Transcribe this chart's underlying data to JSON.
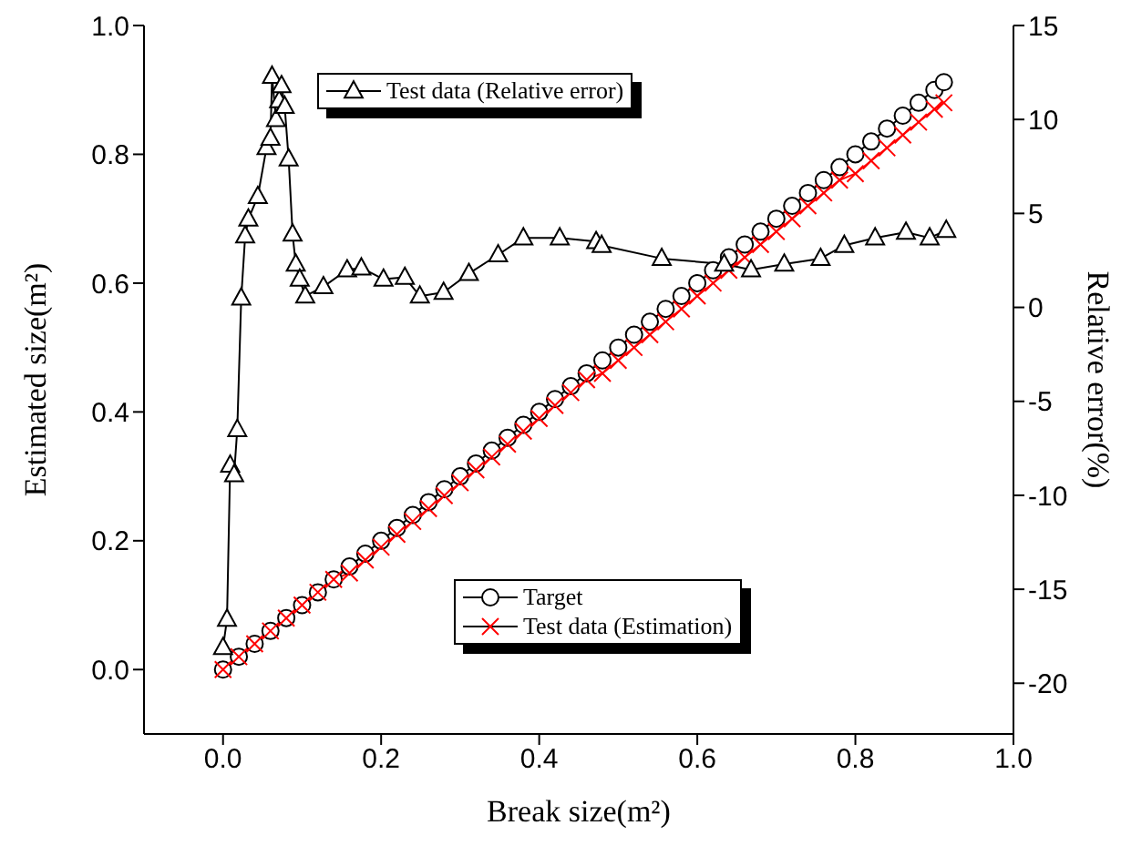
{
  "chart_data": {
    "type": "line",
    "xlabel": "Break size(m²)",
    "ylabel": "Estimated size(m²)",
    "y2label": "Relative error(%)",
    "xlim": [
      -0.1,
      1.0
    ],
    "xticks": [
      {
        "value": 0,
        "label": "0.0"
      },
      0.2,
      0.4,
      0.6,
      0.8,
      {
        "value": 1,
        "label": "1.0"
      }
    ],
    "ylim": [
      -0.1,
      1.0
    ],
    "yticks": [
      {
        "value": 0,
        "label": "0.0"
      },
      0.2,
      0.4,
      0.6,
      0.8,
      {
        "value": 1,
        "label": "1.0"
      }
    ],
    "y2lim": [
      -22.7,
      15
    ],
    "y2ticks": [
      -20,
      -15,
      -10,
      -5,
      0,
      5,
      10,
      15
    ],
    "legend": "top left",
    "line_style": "solid",
    "series": [
      {
        "name": "Target",
        "color": "#000000",
        "marker": "circle",
        "x": [
          0,
          0.02,
          0.04,
          0.06,
          0.08,
          0.1,
          0.12,
          0.14,
          0.16,
          0.18,
          0.2,
          0.22,
          0.24,
          0.26,
          0.28,
          0.3,
          0.32,
          0.34,
          0.36,
          0.38,
          0.4,
          0.42,
          0.44,
          0.46,
          0.48,
          0.5,
          0.52,
          0.54,
          0.56,
          0.58,
          0.6,
          0.62,
          0.64,
          0.66,
          0.68,
          0.7,
          0.72,
          0.74,
          0.76,
          0.78,
          0.8,
          0.82,
          0.84,
          0.86,
          0.88,
          0.9,
          0.912
        ],
        "values": [
          0,
          0.02,
          0.04,
          0.06,
          0.08,
          0.1,
          0.12,
          0.14,
          0.16,
          0.18,
          0.2,
          0.22,
          0.24,
          0.26,
          0.28,
          0.3,
          0.32,
          0.34,
          0.36,
          0.38,
          0.4,
          0.42,
          0.44,
          0.46,
          0.48,
          0.5,
          0.52,
          0.54,
          0.56,
          0.58,
          0.6,
          0.62,
          0.64,
          0.66,
          0.68,
          0.7,
          0.72,
          0.74,
          0.76,
          0.78,
          0.8,
          0.82,
          0.84,
          0.86,
          0.88,
          0.9,
          0.912
        ]
      },
      {
        "name": "Test data (Estimation)",
        "color": "#ff0000",
        "marker": "cross",
        "x": [
          0,
          0.02,
          0.04,
          0.06,
          0.08,
          0.1,
          0.12,
          0.14,
          0.16,
          0.18,
          0.2,
          0.22,
          0.24,
          0.26,
          0.28,
          0.3,
          0.32,
          0.34,
          0.36,
          0.38,
          0.4,
          0.42,
          0.44,
          0.46,
          0.48,
          0.5,
          0.52,
          0.54,
          0.56,
          0.58,
          0.6,
          0.62,
          0.64,
          0.66,
          0.68,
          0.7,
          0.72,
          0.74,
          0.76,
          0.78,
          0.8,
          0.82,
          0.84,
          0.86,
          0.88,
          0.9,
          0.912
        ],
        "values": [
          0,
          0.02,
          0.04,
          0.06,
          0.08,
          0.1,
          0.12,
          0.14,
          0.15,
          0.17,
          0.19,
          0.21,
          0.23,
          0.25,
          0.27,
          0.29,
          0.31,
          0.33,
          0.35,
          0.37,
          0.39,
          0.41,
          0.43,
          0.45,
          0.46,
          0.48,
          0.5,
          0.52,
          0.54,
          0.56,
          0.58,
          0.6,
          0.62,
          0.64,
          0.66,
          0.68,
          0.7,
          0.72,
          0.74,
          0.76,
          0.77,
          0.79,
          0.81,
          0.83,
          0.85,
          0.87,
          0.88
        ]
      },
      {
        "name": "Test data (Relative error)",
        "color": "#000000",
        "marker": "triangle",
        "axis": "y2",
        "x": [
          0.0,
          0.005,
          0.009,
          0.014,
          0.018,
          0.023,
          0.028,
          0.032,
          0.044,
          0.055,
          0.06,
          0.062,
          0.067,
          0.071,
          0.074,
          0.078,
          0.083,
          0.088,
          0.092,
          0.097,
          0.104,
          0.127,
          0.157,
          0.175,
          0.203,
          0.23,
          0.249,
          0.279,
          0.311,
          0.348,
          0.38,
          0.426,
          0.472,
          0.479,
          0.555,
          0.634,
          0.668,
          0.71,
          0.756,
          0.786,
          0.825,
          0.864,
          0.894,
          0.915
        ],
        "values": [
          -18.1,
          -16.6,
          -8.4,
          -8.9,
          -6.5,
          0.5,
          3.8,
          4.7,
          5.9,
          8.5,
          9.0,
          12.3,
          10.0,
          11.0,
          11.8,
          10.7,
          7.9,
          3.9,
          2.3,
          1.5,
          0.6,
          1.1,
          2.0,
          2.1,
          1.5,
          1.6,
          0.6,
          0.8,
          1.8,
          2.8,
          3.7,
          3.7,
          3.5,
          3.3,
          2.6,
          2.3,
          2.0,
          2.3,
          2.6,
          3.3,
          3.7,
          4.0,
          3.7,
          4.1
        ]
      }
    ]
  }
}
